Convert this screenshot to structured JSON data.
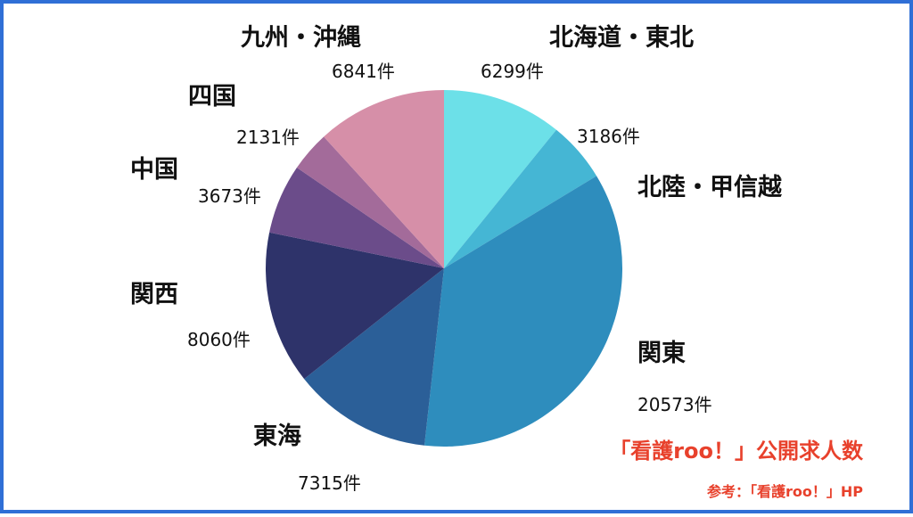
{
  "chart_data": {
    "type": "pie",
    "unit": "件",
    "categories": [
      "北海道・東北",
      "北陸・甲信越",
      "関東",
      "東海",
      "関西",
      "中国",
      "四国",
      "九州・沖縄"
    ],
    "values": [
      6299,
      3186,
      20573,
      7315,
      8060,
      3673,
      2131,
      6841
    ],
    "count_labels": [
      "6299件",
      "3186件",
      "20573件",
      "7315件",
      "8060件",
      "3673件",
      "2131件",
      "6841件"
    ],
    "colors": [
      "#6ce0e8",
      "#45b6d4",
      "#2e8dbd",
      "#2b5f98",
      "#2e336a",
      "#6b4c8a",
      "#a36b9a",
      "#d68fa8"
    ],
    "start": "12 o'clock",
    "direction": "clockwise"
  },
  "annotations": {
    "title": "「看護roo！」公開求人数",
    "source": "参考：「看護roo！」HP"
  }
}
